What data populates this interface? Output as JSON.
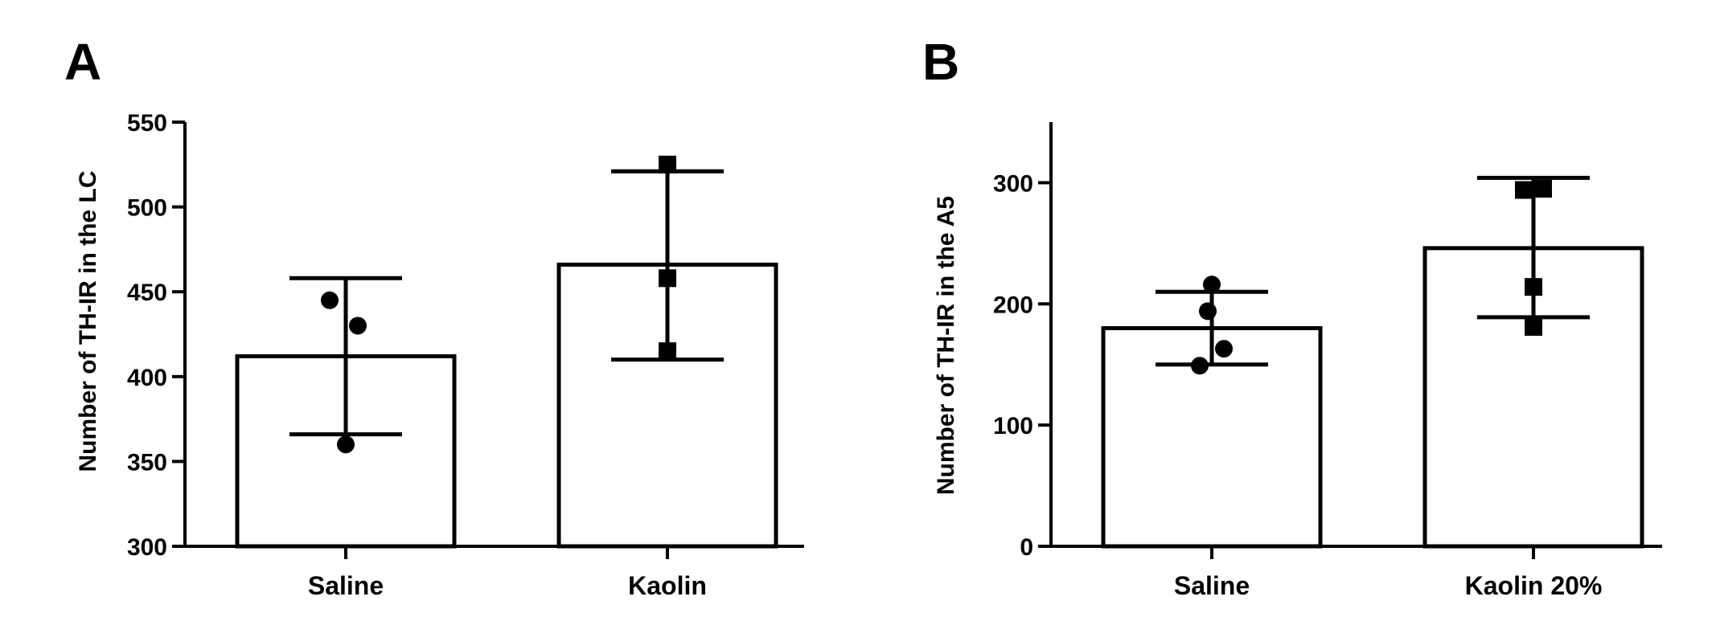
{
  "chart_data": [
    {
      "type": "bar",
      "panel_label": "A",
      "ylabel": "Number of TH-IR in the LC",
      "xlabel": "",
      "ylim": [
        300,
        550
      ],
      "yticks": [
        300,
        350,
        400,
        450,
        500,
        550
      ],
      "categories": [
        "Saline",
        "Kaolin"
      ],
      "values": [
        412,
        466
      ],
      "error_upper": [
        458,
        521
      ],
      "error_lower": [
        366,
        410
      ],
      "marker_shapes": [
        "circle",
        "square"
      ],
      "points": [
        [
          445,
          430,
          360
        ],
        [
          525,
          458,
          415
        ]
      ],
      "grid": false
    },
    {
      "type": "bar",
      "panel_label": "B",
      "ylabel": "Number of TH-IR in the A5",
      "xlabel": "",
      "ylim": [
        0,
        350
      ],
      "yticks": [
        0,
        100,
        200,
        300
      ],
      "categories": [
        "Saline",
        "Kaolin 20%"
      ],
      "values": [
        180,
        246
      ],
      "error_upper": [
        210,
        304
      ],
      "error_lower": [
        150,
        189
      ],
      "marker_shapes": [
        "circle",
        "square"
      ],
      "points": [
        [
          216,
          194,
          163,
          149
        ],
        [
          294,
          295,
          214,
          181
        ]
      ],
      "grid": false
    }
  ]
}
